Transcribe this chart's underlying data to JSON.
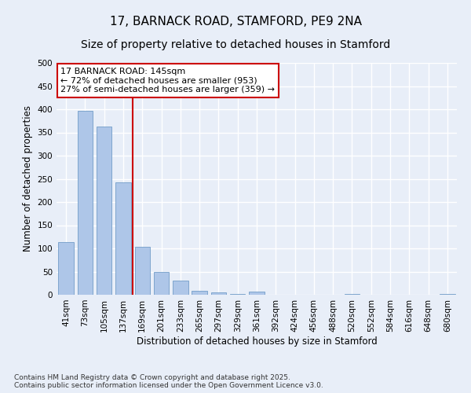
{
  "title": "17, BARNACK ROAD, STAMFORD, PE9 2NA",
  "subtitle": "Size of property relative to detached houses in Stamford",
  "xlabel": "Distribution of detached houses by size in Stamford",
  "ylabel": "Number of detached properties",
  "categories": [
    "41sqm",
    "73sqm",
    "105sqm",
    "137sqm",
    "169sqm",
    "201sqm",
    "233sqm",
    "265sqm",
    "297sqm",
    "329sqm",
    "361sqm",
    "392sqm",
    "424sqm",
    "456sqm",
    "488sqm",
    "520sqm",
    "552sqm",
    "584sqm",
    "616sqm",
    "648sqm",
    "680sqm"
  ],
  "values": [
    113,
    397,
    362,
    243,
    104,
    50,
    30,
    9,
    5,
    2,
    6,
    0,
    0,
    0,
    0,
    1,
    0,
    0,
    0,
    0,
    1
  ],
  "bar_color": "#aec6e8",
  "bar_edge_color": "#6090c0",
  "vline_x_index": 3.5,
  "vline_color": "#cc0000",
  "annotation_text": "17 BARNACK ROAD: 145sqm\n← 72% of detached houses are smaller (953)\n27% of semi-detached houses are larger (359) →",
  "annotation_box_color": "#ffffff",
  "annotation_box_edge": "#cc0000",
  "ylim": [
    0,
    500
  ],
  "yticks": [
    0,
    50,
    100,
    150,
    200,
    250,
    300,
    350,
    400,
    450,
    500
  ],
  "bg_color": "#e8eef8",
  "grid_color": "#ffffff",
  "footnote": "Contains HM Land Registry data © Crown copyright and database right 2025.\nContains public sector information licensed under the Open Government Licence v3.0.",
  "title_fontsize": 11,
  "subtitle_fontsize": 10,
  "xlabel_fontsize": 8.5,
  "ylabel_fontsize": 8.5,
  "annotation_fontsize": 8,
  "footnote_fontsize": 6.5,
  "tick_fontsize": 7.5
}
